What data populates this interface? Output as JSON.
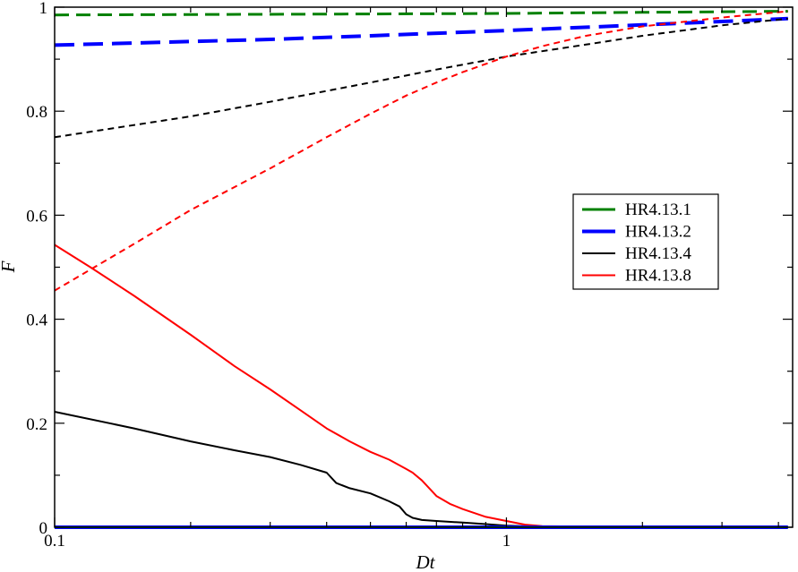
{
  "chart_data": {
    "type": "line",
    "xscale": "log",
    "xlabel": "Dt",
    "ylabel": "F",
    "xlim": [
      0.1,
      4.3
    ],
    "ylim": [
      0,
      1
    ],
    "x_major_ticks": [
      {
        "value": 0.1,
        "label": "0.1"
      },
      {
        "value": 1,
        "label": "1"
      }
    ],
    "x_minor_ticks": [
      0.2,
      0.3,
      0.4,
      0.5,
      0.6,
      0.7,
      0.8,
      0.9,
      2,
      3,
      4
    ],
    "y_ticks": [
      {
        "value": 0,
        "label": "0"
      },
      {
        "value": 0.2,
        "label": "0.2"
      },
      {
        "value": 0.4,
        "label": "0.4"
      },
      {
        "value": 0.6,
        "label": "0.6"
      },
      {
        "value": 0.8,
        "label": "0.8"
      },
      {
        "value": 1,
        "label": "1"
      }
    ],
    "grid": false,
    "legend_position": "center-right",
    "legend": [
      {
        "name": "HR4.13.1",
        "color": "#008000",
        "width": 3
      },
      {
        "name": "HR4.13.2",
        "color": "#0000ff",
        "width": 4
      },
      {
        "name": "HR4.13.4",
        "color": "#000000",
        "width": 2
      },
      {
        "name": "HR4.13.8",
        "color": "#ff0000",
        "width": 2
      }
    ],
    "series": [
      {
        "color": "#008000",
        "width": 3,
        "dash": "16 8",
        "x": [
          0.1,
          0.5,
          1,
          2,
          4.2
        ],
        "y": [
          0.985,
          0.987,
          0.988,
          0.99,
          0.992
        ]
      },
      {
        "color": "#0000ff",
        "width": 4,
        "dash": "22 10",
        "x": [
          0.1,
          0.3,
          0.5,
          1,
          2,
          4.2
        ],
        "y": [
          0.927,
          0.938,
          0.945,
          0.955,
          0.966,
          0.978
        ]
      },
      {
        "color": "#000000",
        "width": 2,
        "dash": "7 5",
        "x": [
          0.1,
          0.2,
          0.3,
          0.5,
          0.7,
          1,
          1.5,
          2,
          3,
          4.2
        ],
        "y": [
          0.75,
          0.79,
          0.818,
          0.855,
          0.88,
          0.905,
          0.928,
          0.945,
          0.965,
          0.978
        ]
      },
      {
        "color": "#ff0000",
        "width": 2,
        "dash": "7 5",
        "x": [
          0.1,
          0.15,
          0.2,
          0.3,
          0.4,
          0.5,
          0.6,
          0.7,
          0.8,
          1,
          1.2,
          1.5,
          2,
          3,
          4.2
        ],
        "y": [
          0.455,
          0.545,
          0.61,
          0.69,
          0.75,
          0.795,
          0.83,
          0.855,
          0.875,
          0.905,
          0.925,
          0.945,
          0.963,
          0.98,
          0.992
        ]
      },
      {
        "color": "#000000",
        "width": 2,
        "dash": "",
        "x": [
          0.1,
          0.15,
          0.2,
          0.25,
          0.3,
          0.35,
          0.4,
          0.42,
          0.45,
          0.5,
          0.55,
          0.58,
          0.6,
          0.62,
          0.65,
          0.7,
          0.8,
          0.9,
          1,
          1.2,
          1.5,
          2,
          4.2
        ],
        "y": [
          0.222,
          0.19,
          0.165,
          0.148,
          0.135,
          0.12,
          0.105,
          0.085,
          0.075,
          0.065,
          0.05,
          0.04,
          0.025,
          0.018,
          0.014,
          0.012,
          0.009,
          0.006,
          0.003,
          0.001,
          0.0,
          0.0,
          0.0
        ]
      },
      {
        "color": "#ff0000",
        "width": 2,
        "dash": "",
        "x": [
          0.1,
          0.12,
          0.15,
          0.2,
          0.25,
          0.3,
          0.35,
          0.4,
          0.45,
          0.5,
          0.55,
          0.6,
          0.62,
          0.65,
          0.7,
          0.75,
          0.8,
          0.9,
          1,
          1.1,
          1.2,
          1.5,
          2,
          4.2
        ],
        "y": [
          0.543,
          0.5,
          0.445,
          0.37,
          0.31,
          0.265,
          0.225,
          0.19,
          0.165,
          0.145,
          0.13,
          0.112,
          0.105,
          0.09,
          0.06,
          0.045,
          0.035,
          0.02,
          0.012,
          0.005,
          0.002,
          0.001,
          0.0,
          0.0
        ]
      },
      {
        "color": "#0000ff",
        "width": 4,
        "dash": "",
        "x": [
          0.1,
          4.2
        ],
        "y": [
          0.0,
          0.0
        ]
      },
      {
        "color": "#008000",
        "width": 2,
        "dash": "",
        "x": [
          0.1,
          4.2
        ],
        "y": [
          0.0,
          0.0
        ]
      }
    ]
  }
}
